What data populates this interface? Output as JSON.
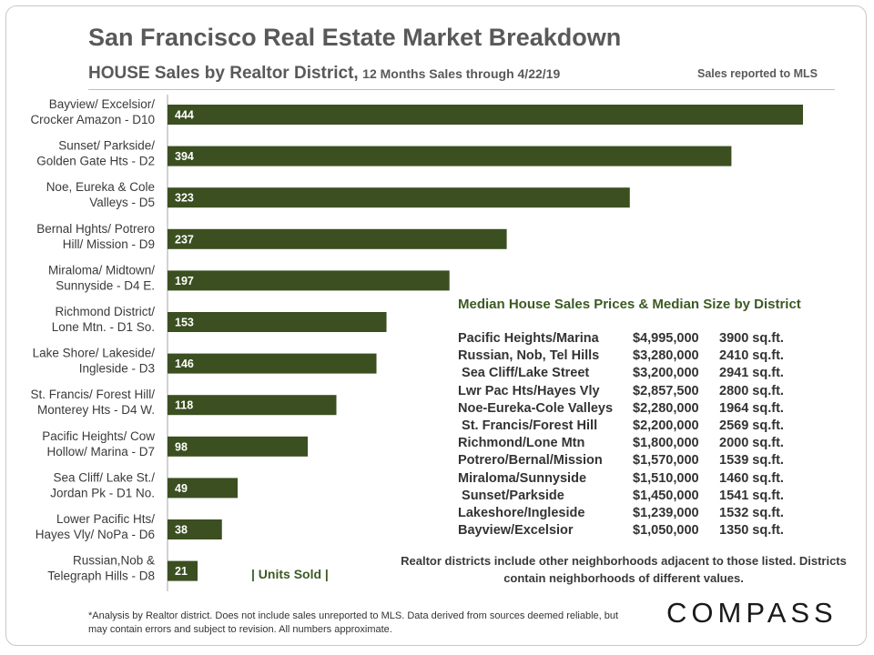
{
  "header": {
    "title": "San Francisco Real Estate Market Breakdown",
    "subtitle_main": "HOUSE  Sales by Realtor District,",
    "subtitle_rest": "12 Months Sales through 4/22/19",
    "mls_note": "Sales reported to MLS"
  },
  "chart_data": {
    "type": "bar",
    "orientation": "horizontal",
    "title": "HOUSE Sales by Realtor District",
    "categories": [
      [
        "Bayview/ Excelsior/",
        "Crocker Amazon - D10"
      ],
      [
        "Sunset/ Parkside/",
        "Golden Gate Hts - D2"
      ],
      [
        "Noe, Eureka & Cole",
        "Valleys - D5"
      ],
      [
        "Bernal Hghts/ Potrero",
        "Hill/ Mission - D9"
      ],
      [
        "Miraloma/ Midtown/",
        "Sunnyside - D4 E."
      ],
      [
        "Richmond District/",
        "Lone Mtn. - D1 So."
      ],
      [
        "Lake Shore/ Lakeside/",
        "Ingleside - D3"
      ],
      [
        "St. Francis/ Forest Hill/",
        "Monterey Hts - D4 W."
      ],
      [
        "Pacific Heights/ Cow",
        "Hollow/ Marina - D7"
      ],
      [
        "Sea Cliff/ Lake St./",
        "Jordan Pk - D1 No."
      ],
      [
        "Lower Pacific Hts/",
        "Hayes Vly/ NoPa - D6"
      ],
      [
        "Russian,Nob &",
        "Telegraph Hills - D8"
      ]
    ],
    "values": [
      444,
      394,
      323,
      237,
      197,
      153,
      146,
      118,
      98,
      49,
      38,
      21
    ],
    "xlabel": "| Units Sold |",
    "xlim": [
      0,
      444
    ],
    "bar_color": "#3b4f20",
    "grid": false
  },
  "median_table": {
    "title": "Median House Sales Prices & Median Size by District",
    "rows": [
      {
        "district": "Pacific Heights/Marina",
        "price": "$4,995,000",
        "size": "3900 sq.ft."
      },
      {
        "district": "Russian, Nob, Tel Hills",
        "price": "$3,280,000",
        "size": "2410 sq.ft."
      },
      {
        "district": " Sea Cliff/Lake Street",
        "price": "$3,200,000",
        "size": "2941 sq.ft."
      },
      {
        "district": "Lwr Pac Hts/Hayes Vly",
        "price": "$2,857,500",
        "size": "2800 sq.ft."
      },
      {
        "district": "Noe-Eureka-Cole Valleys",
        "price": "$2,280,000",
        "size": "1964 sq.ft."
      },
      {
        "district": " St. Francis/Forest Hill",
        "price": "$2,200,000",
        "size": "2569 sq.ft."
      },
      {
        "district": "Richmond/Lone Mtn",
        "price": "$1,800,000",
        "size": "2000 sq.ft."
      },
      {
        "district": "Potrero/Bernal/Mission",
        "price": "$1,570,000",
        "size": "1539 sq.ft."
      },
      {
        "district": "Miraloma/Sunnyside",
        "price": "$1,510,000",
        "size": "1460 sq.ft."
      },
      {
        "district": " Sunset/Parkside",
        "price": "$1,450,000",
        "size": "1541 sq.ft."
      },
      {
        "district": "Lakeshore/Ingleside",
        "price": "$1,239,000",
        "size": "1532 sq.ft."
      },
      {
        "district": "Bayview/Excelsior",
        "price": "$1,050,000",
        "size": "1350 sq.ft."
      }
    ]
  },
  "districts_note": "Realtor districts include other neighborhoods adjacent to those listed. Districts contain neighborhoods of different values.",
  "footnote": "*Analysis by Realtor district. Does not include sales unreported to MLS. Data derived from sources deemed reliable, but may contain errors and subject to revision. All numbers approximate.",
  "logo": "COMPASS"
}
